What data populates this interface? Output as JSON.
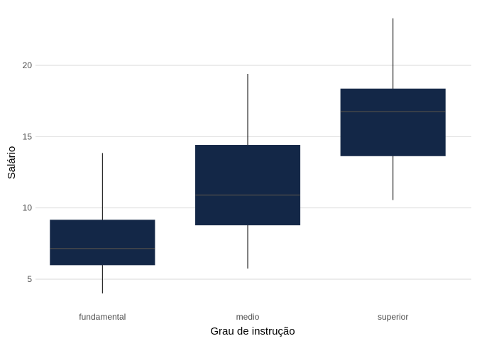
{
  "chart_data": {
    "type": "boxplot",
    "title": "",
    "xlabel": "Grau de instrução",
    "ylabel": "Salário",
    "categories": [
      "fundamental",
      "medio",
      "superior"
    ],
    "boxes": [
      {
        "category": "fundamental",
        "min": 4.0,
        "q1": 6.0,
        "median": 7.15,
        "q3": 9.15,
        "max": 13.85
      },
      {
        "category": "medio",
        "min": 5.75,
        "q1": 8.8,
        "median": 10.9,
        "q3": 14.4,
        "max": 19.4
      },
      {
        "category": "superior",
        "min": 10.55,
        "q1": 13.65,
        "median": 16.75,
        "q3": 18.35,
        "max": 23.3
      }
    ],
    "yticks": [
      5,
      10,
      15,
      20
    ],
    "ylim": [
      3.0,
      24.0
    ],
    "grid": true,
    "colors": {
      "box_fill": "#132747",
      "median_line": "#4a4a4a",
      "whisker": "#000000",
      "grid": "#d9d9d9"
    }
  }
}
